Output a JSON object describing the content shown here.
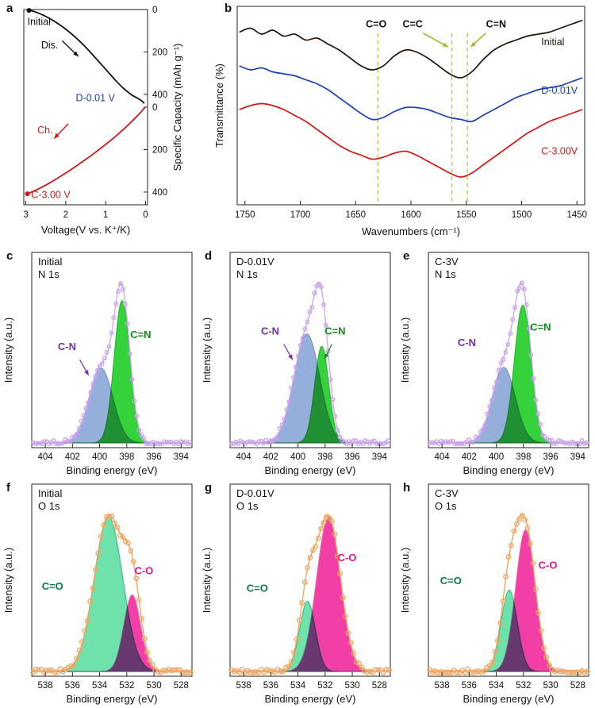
{
  "figure": {
    "bg": "#ffffff",
    "panel_letters": [
      "a",
      "b",
      "c",
      "d",
      "e",
      "f",
      "g",
      "h"
    ]
  },
  "chart_data": [
    {
      "id": "a",
      "type": "line",
      "renderer": "capacity",
      "xlabel": "Voltage(V vs. K⁺/K)",
      "ylabel": "Specific Capacity (mAh g⁻¹)",
      "x_range": [
        3.05,
        -0.05
      ],
      "x_ticks": [
        3,
        2,
        1,
        0
      ],
      "y_max": 460,
      "y_ticks_top": [
        0,
        200,
        400
      ],
      "y_ticks_bottom": [
        0,
        200,
        400
      ],
      "series": [
        {
          "name": "Discharge",
          "color": "#111111",
          "half": "top",
          "points": [
            [
              2.92,
              2
            ],
            [
              2.75,
              12
            ],
            [
              2.55,
              28
            ],
            [
              2.35,
              48
            ],
            [
              2.15,
              72
            ],
            [
              1.95,
              100
            ],
            [
              1.75,
              132
            ],
            [
              1.55,
              168
            ],
            [
              1.35,
              208
            ],
            [
              1.15,
              250
            ],
            [
              0.95,
              292
            ],
            [
              0.75,
              334
            ],
            [
              0.55,
              372
            ],
            [
              0.35,
              402
            ],
            [
              0.2,
              418
            ],
            [
              0.1,
              430
            ],
            [
              0.03,
              442
            ]
          ]
        },
        {
          "name": "Charge",
          "color": "#d01818",
          "half": "bottom",
          "points": [
            [
              0.02,
              2
            ],
            [
              0.15,
              30
            ],
            [
              0.35,
              68
            ],
            [
              0.55,
              104
            ],
            [
              0.8,
              145
            ],
            [
              1.05,
              183
            ],
            [
              1.3,
              219
            ],
            [
              1.55,
              253
            ],
            [
              1.85,
              292
            ],
            [
              2.15,
              328
            ],
            [
              2.45,
              362
            ],
            [
              2.7,
              387
            ],
            [
              2.88,
              402
            ],
            [
              2.96,
              410
            ]
          ]
        }
      ],
      "markers": [
        {
          "v": 2.92,
          "cap": 4,
          "half": "top",
          "color": "#111111"
        },
        {
          "v": 2.96,
          "cap": 408,
          "half": "bottom",
          "color": "#d01818"
        }
      ],
      "annotations": [
        {
          "text": "Initial",
          "fx": 0.03,
          "fy": 0.08,
          "color": "#111111"
        },
        {
          "text": "Dis.",
          "fx": 0.14,
          "fy": 0.2,
          "color": "#111111"
        },
        {
          "text": "D-0.01 V",
          "fx": 0.42,
          "fy": 0.47,
          "color": "#1d3fb0"
        },
        {
          "text": "Ch.",
          "fx": 0.11,
          "fy": 0.635,
          "color": "#d01818"
        },
        {
          "text": "C-3.00 V",
          "fx": 0.06,
          "fy": 0.965,
          "color": "#d01818"
        }
      ],
      "arrows": [
        {
          "fx1": 0.31,
          "fy1": 0.16,
          "fx2": 0.44,
          "fy2": 0.24,
          "color": "#111111"
        },
        {
          "fx1": 0.36,
          "fy1": 0.585,
          "fx2": 0.245,
          "fy2": 0.66,
          "color": "#d01818"
        }
      ]
    },
    {
      "id": "b",
      "type": "line",
      "renderer": "ftir",
      "xlabel": "Wavenumbers (cm⁻¹)",
      "ylabel": "Transmittance (%)",
      "x_range": [
        1757,
        1443
      ],
      "x_ticks": [
        1750,
        1700,
        1650,
        1600,
        1550,
        1500,
        1450
      ],
      "vlines": [
        1630,
        1563,
        1549
      ],
      "vline_color": "#b9c437",
      "series": [
        {
          "name": "Initial",
          "color": "#241509",
          "label_fx": 0.875,
          "label_fy": 0.195,
          "points": [
            [
              1755,
              0.13
            ],
            [
              1745,
              0.11
            ],
            [
              1735,
              0.14
            ],
            [
              1725,
              0.12
            ],
            [
              1715,
              0.15
            ],
            [
              1705,
              0.14
            ],
            [
              1695,
              0.17
            ],
            [
              1685,
              0.16
            ],
            [
              1675,
              0.19
            ],
            [
              1665,
              0.22
            ],
            [
              1655,
              0.26
            ],
            [
              1645,
              0.3
            ],
            [
              1635,
              0.32
            ],
            [
              1625,
              0.3
            ],
            [
              1615,
              0.25
            ],
            [
              1605,
              0.22
            ],
            [
              1595,
              0.23
            ],
            [
              1585,
              0.26
            ],
            [
              1575,
              0.3
            ],
            [
              1565,
              0.34
            ],
            [
              1555,
              0.36
            ],
            [
              1545,
              0.33
            ],
            [
              1535,
              0.27
            ],
            [
              1525,
              0.22
            ],
            [
              1515,
              0.19
            ],
            [
              1505,
              0.17
            ],
            [
              1495,
              0.15
            ],
            [
              1485,
              0.14
            ],
            [
              1475,
              0.13
            ],
            [
              1465,
              0.11
            ],
            [
              1455,
              0.09
            ],
            [
              1445,
              0.07
            ]
          ]
        },
        {
          "name": "D-0.01V",
          "color": "#1d3fb0",
          "label_fx": 0.875,
          "label_fy": 0.44,
          "points": [
            [
              1755,
              0.3
            ],
            [
              1745,
              0.32
            ],
            [
              1735,
              0.31
            ],
            [
              1725,
              0.33
            ],
            [
              1715,
              0.34
            ],
            [
              1705,
              0.35
            ],
            [
              1695,
              0.37
            ],
            [
              1685,
              0.39
            ],
            [
              1675,
              0.42
            ],
            [
              1665,
              0.46
            ],
            [
              1655,
              0.5
            ],
            [
              1645,
              0.54
            ],
            [
              1635,
              0.57
            ],
            [
              1625,
              0.56
            ],
            [
              1615,
              0.53
            ],
            [
              1605,
              0.51
            ],
            [
              1595,
              0.51
            ],
            [
              1585,
              0.52
            ],
            [
              1575,
              0.54
            ],
            [
              1565,
              0.56
            ],
            [
              1555,
              0.57
            ],
            [
              1545,
              0.58
            ],
            [
              1535,
              0.55
            ],
            [
              1525,
              0.52
            ],
            [
              1515,
              0.49
            ],
            [
              1505,
              0.46
            ],
            [
              1495,
              0.44
            ],
            [
              1485,
              0.42
            ],
            [
              1475,
              0.41
            ],
            [
              1465,
              0.4
            ],
            [
              1455,
              0.38
            ],
            [
              1445,
              0.36
            ]
          ]
        },
        {
          "name": "C-3.00V",
          "color": "#d01818",
          "label_fx": 0.875,
          "label_fy": 0.745,
          "points": [
            [
              1755,
              0.52
            ],
            [
              1745,
              0.5
            ],
            [
              1735,
              0.49
            ],
            [
              1725,
              0.5
            ],
            [
              1715,
              0.52
            ],
            [
              1705,
              0.55
            ],
            [
              1695,
              0.58
            ],
            [
              1685,
              0.62
            ],
            [
              1675,
              0.66
            ],
            [
              1665,
              0.7
            ],
            [
              1655,
              0.73
            ],
            [
              1645,
              0.75
            ],
            [
              1635,
              0.77
            ],
            [
              1625,
              0.76
            ],
            [
              1615,
              0.74
            ],
            [
              1605,
              0.73
            ],
            [
              1595,
              0.75
            ],
            [
              1585,
              0.78
            ],
            [
              1575,
              0.81
            ],
            [
              1565,
              0.84
            ],
            [
              1555,
              0.86
            ],
            [
              1545,
              0.84
            ],
            [
              1535,
              0.8
            ],
            [
              1525,
              0.76
            ],
            [
              1515,
              0.72
            ],
            [
              1505,
              0.68
            ],
            [
              1495,
              0.64
            ],
            [
              1485,
              0.61
            ],
            [
              1475,
              0.58
            ],
            [
              1465,
              0.56
            ],
            [
              1455,
              0.54
            ],
            [
              1445,
              0.52
            ]
          ]
        }
      ],
      "annotations": [
        {
          "text": "C=O",
          "fx": 0.4,
          "fy": 0.105,
          "color": "#111111"
        },
        {
          "text": "C=C",
          "fx": 0.505,
          "fy": 0.105,
          "color": "#111111"
        },
        {
          "text": "C=N",
          "fx": 0.745,
          "fy": 0.105,
          "color": "#111111"
        }
      ],
      "arrows": [
        {
          "fx1": 0.535,
          "fy1": 0.135,
          "fx2": 0.607,
          "fy2": 0.205,
          "color": "#a9b531"
        },
        {
          "fx1": 0.715,
          "fy1": 0.135,
          "fx2": 0.672,
          "fy2": 0.205,
          "color": "#a9b531"
        }
      ]
    },
    {
      "id": "c",
      "type": "area",
      "renderer": "xps",
      "title_lines": [
        "Initial",
        "N 1s"
      ],
      "xlabel": "Binding energy (eV)",
      "ylabel": "Intensity (a.u.)",
      "x_range": [
        405,
        393.2
      ],
      "x_ticks": [
        404,
        402,
        400,
        398,
        396,
        394
      ],
      "env_color": "#c9a2ee",
      "marker_color": "#c9a2ee",
      "marker_r": 2.2,
      "marker_step": 0.17,
      "components": [
        {
          "name": "C=N",
          "center": 398.35,
          "sigma": 0.58,
          "amp": 0.8,
          "fill": "#35d23c",
          "stroke": "#23b52c"
        },
        {
          "name": "C-N",
          "center": 399.9,
          "sigma": 0.88,
          "amp": 0.42,
          "fill": "#7b9bd2",
          "stroke": "#6f8fc9"
        }
      ],
      "labels": [
        {
          "text": "C-N",
          "fx": 0.22,
          "fy": 0.5,
          "color": "#7030a8",
          "arrow": [
            0.3,
            0.55,
            0.355,
            0.63
          ]
        },
        {
          "text": "C=N",
          "fx": 0.68,
          "fy": 0.44,
          "color": "#0f8c1a"
        }
      ]
    },
    {
      "id": "d",
      "type": "area",
      "renderer": "xps",
      "title_lines": [
        "D-0.01V",
        "N 1s"
      ],
      "xlabel": "Binding energy (eV)",
      "ylabel": "Intensity (a.u.)",
      "x_range": [
        405,
        393.2
      ],
      "x_ticks": [
        404,
        402,
        400,
        398,
        396,
        394
      ],
      "env_color": "#c9a2ee",
      "marker_color": "#c9a2ee",
      "marker_r": 2.2,
      "marker_step": 0.17,
      "components": [
        {
          "name": "C=N",
          "center": 398.25,
          "sigma": 0.52,
          "amp": 0.55,
          "fill": "#35d23c",
          "stroke": "#23b52c"
        },
        {
          "name": "C-N",
          "center": 399.35,
          "sigma": 0.95,
          "amp": 0.62,
          "fill": "#7b9bd2",
          "stroke": "#6f8fc9"
        }
      ],
      "labels": [
        {
          "text": "C-N",
          "fx": 0.25,
          "fy": 0.42,
          "color": "#7030a8",
          "arrow": [
            0.335,
            0.47,
            0.39,
            0.55
          ]
        },
        {
          "text": "C=N",
          "fx": 0.655,
          "fy": 0.42,
          "color": "#0f8c1a",
          "arrow": [
            0.635,
            0.47,
            0.59,
            0.545
          ]
        }
      ]
    },
    {
      "id": "e",
      "type": "area",
      "renderer": "xps",
      "title_lines": [
        "C-3V",
        "N 1s"
      ],
      "xlabel": "Binding energy (eV)",
      "ylabel": "Intensity (a.u.)",
      "x_range": [
        405,
        393.2
      ],
      "x_ticks": [
        404,
        402,
        400,
        398,
        396,
        394
      ],
      "env_color": "#c9a2ee",
      "marker_color": "#c9a2ee",
      "marker_r": 2.2,
      "marker_step": 0.17,
      "components": [
        {
          "name": "C=N",
          "center": 398.05,
          "sigma": 0.62,
          "amp": 0.82,
          "fill": "#35d23c",
          "stroke": "#23b52c"
        },
        {
          "name": "C-N",
          "center": 399.45,
          "sigma": 0.85,
          "amp": 0.45,
          "fill": "#7b9bd2",
          "stroke": "#6f8fc9"
        }
      ],
      "labels": [
        {
          "text": "C-N",
          "fx": 0.24,
          "fy": 0.48,
          "color": "#7030a8"
        },
        {
          "text": "C=N",
          "fx": 0.7,
          "fy": 0.4,
          "color": "#0f8c1a"
        }
      ]
    },
    {
      "id": "f",
      "type": "area",
      "renderer": "xps",
      "title_lines": [
        "Initial",
        "O 1s"
      ],
      "xlabel": "Binding energy (eV)",
      "ylabel": "Intensity (a.u.)",
      "x_range": [
        539,
        527.2
      ],
      "x_ticks": [
        538,
        536,
        534,
        532,
        530,
        528
      ],
      "env_color": "#ef913d",
      "marker_color": "#f2a765",
      "marker_r": 2.7,
      "marker_step": 0.2,
      "components": [
        {
          "name": "C=O",
          "center": 533.35,
          "sigma": 1.05,
          "amp": 0.85,
          "fill": "#6fe2ac",
          "stroke": "#35b57f"
        },
        {
          "name": "C-O",
          "center": 531.6,
          "sigma": 0.62,
          "amp": 0.42,
          "fill": "#ef0f92",
          "stroke": "#f06aad"
        }
      ],
      "labels": [
        {
          "text": "C=O",
          "fx": 0.13,
          "fy": 0.55,
          "color": "#0a7a46"
        },
        {
          "text": "C-O",
          "fx": 0.7,
          "fy": 0.47,
          "color": "#e3128f"
        }
      ]
    },
    {
      "id": "g",
      "type": "area",
      "renderer": "xps",
      "title_lines": [
        "D-0.01V",
        "O 1s"
      ],
      "xlabel": "Binding energy (eV)",
      "ylabel": "Intensity (a.u.)",
      "x_range": [
        539,
        527.2
      ],
      "x_ticks": [
        538,
        536,
        534,
        532,
        530,
        528
      ],
      "env_color": "#ef913d",
      "marker_color": "#f2a765",
      "marker_r": 2.7,
      "marker_step": 0.2,
      "components": [
        {
          "name": "C=O",
          "center": 533.3,
          "sigma": 0.58,
          "amp": 0.4,
          "fill": "#6fe2ac",
          "stroke": "#35b57f"
        },
        {
          "name": "C-O",
          "center": 531.75,
          "sigma": 0.88,
          "amp": 0.88,
          "fill": "#ef0f92",
          "stroke": "#f06aad"
        }
      ],
      "labels": [
        {
          "text": "C=O",
          "fx": 0.17,
          "fy": 0.56,
          "color": "#0a7a46"
        },
        {
          "text": "C-O",
          "fx": 0.73,
          "fy": 0.4,
          "color": "#e3128f"
        }
      ]
    },
    {
      "id": "h",
      "type": "area",
      "renderer": "xps",
      "title_lines": [
        "C-3V",
        "O 1s"
      ],
      "xlabel": "Binding energy (eV)",
      "ylabel": "Intensity (a.u.)",
      "x_range": [
        539,
        527.2
      ],
      "x_ticks": [
        538,
        536,
        534,
        532,
        530,
        528
      ],
      "env_color": "#ef913d",
      "marker_color": "#f2a765",
      "marker_r": 2.7,
      "marker_step": 0.2,
      "components": [
        {
          "name": "C=O",
          "center": 533.05,
          "sigma": 0.6,
          "amp": 0.46,
          "fill": "#6fe2ac",
          "stroke": "#35b57f"
        },
        {
          "name": "C-O",
          "center": 531.85,
          "sigma": 0.72,
          "amp": 0.8,
          "fill": "#ef0f92",
          "stroke": "#f06aad"
        }
      ],
      "labels": [
        {
          "text": "C=O",
          "fx": 0.14,
          "fy": 0.52,
          "color": "#0a7a46"
        },
        {
          "text": "C-O",
          "fx": 0.745,
          "fy": 0.44,
          "color": "#e3128f"
        }
      ]
    }
  ]
}
